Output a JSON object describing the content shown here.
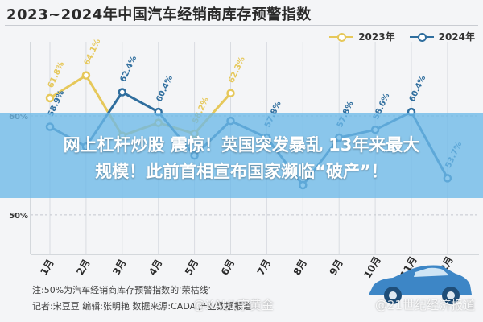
{
  "header": {
    "title": "2023~2024年中国汽车经销商库存预警指数"
  },
  "headline": {
    "line1": "网上杠杆炒股 震惊！英国突发暴乱 13年来最大",
    "line2": "规模！此前首相宣布国家濒临“破产”！"
  },
  "footer": {
    "note": "注:50%为汽车经销商库存预警指数的‘荣枯线’",
    "credit": "记者:宋豆豆  编辑:张明艳  数据来源:CADA  产业数据报道"
  },
  "watermarks": {
    "left": "@XAI八字黄金",
    "right": "@21世纪经济报道"
  },
  "colors": {
    "series2023": "#e6c85a",
    "series2024": "#2f6e9e",
    "banner": "#6cb8e8"
  },
  "icons": {
    "car": "car-icon"
  },
  "chart_data": {
    "type": "line",
    "categories": [
      "1月",
      "2月",
      "3月",
      "4月",
      "5月",
      "6月",
      "7月",
      "8月",
      "9月",
      "10月",
      "11月",
      "12月"
    ],
    "series": [
      {
        "name": "2023年",
        "values": [
          61.8,
          64.1,
          58.0,
          59.3,
          58.2,
          62.3,
          null,
          null,
          null,
          null,
          null,
          null
        ]
      },
      {
        "name": "2024年",
        "values": [
          58.9,
          56.9,
          62.4,
          60.4,
          56.0,
          59.5,
          57.8,
          53.0,
          57.8,
          58.6,
          60.4,
          53.7
        ]
      }
    ],
    "ytick_labels": [
      "60%",
      "50%"
    ],
    "ytick_values": [
      60,
      50
    ],
    "point_labels": {
      "2023年": [
        "61.8%",
        "64.1%",
        "",
        "",
        "58.2%",
        "62.3%",
        "",
        "",
        "",
        "",
        "",
        ""
      ],
      "2024年": [
        "58.9%",
        "",
        "62.4%",
        "60.4%",
        "",
        "",
        "57.8%",
        "",
        "57.8%",
        "58.6%",
        "60.4%",
        "53.7%"
      ]
    },
    "ylim": [
      46,
      67
    ],
    "grid": true,
    "legend_position": "top-right"
  }
}
